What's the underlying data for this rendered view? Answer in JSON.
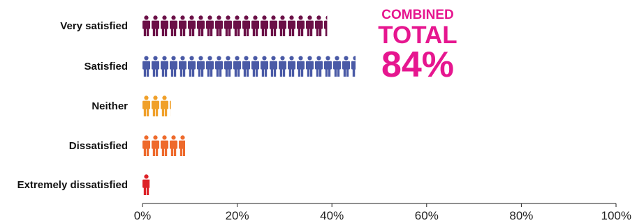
{
  "chart_data": {
    "type": "bar",
    "orientation": "horizontal",
    "mark": "pictogram",
    "categories": [
      "Very satisfied",
      "Satisfied",
      "Neither",
      "Dissatisfied",
      "Extremely dissatisfied"
    ],
    "values": [
      39,
      45,
      6,
      9,
      1.5
    ],
    "colors": [
      "#6b1047",
      "#4a5aa6",
      "#f0a02a",
      "#ee6a2c",
      "#dd2228"
    ],
    "xlim": [
      0,
      100
    ],
    "xticks": [
      "0%",
      "20%",
      "40%",
      "60%",
      "80%",
      "100%"
    ],
    "xtick_values": [
      0,
      20,
      40,
      60,
      80,
      100
    ],
    "grid": false,
    "annotation": {
      "lines": [
        "COMBINED",
        "TOTAL",
        "84%"
      ],
      "color": "#e6168f"
    }
  }
}
